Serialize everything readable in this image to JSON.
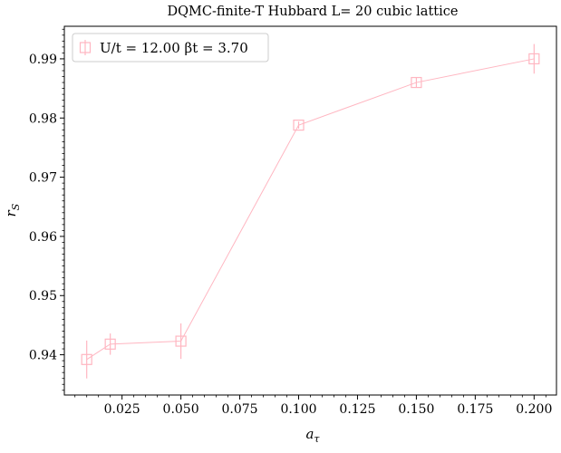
{
  "chart_data": {
    "type": "line",
    "title": "DQMC-finite-T Hubbard L= 20 cubic lattice",
    "xlabel": "a_τ",
    "xlabel_main": "a",
    "xlabel_sub": "τ",
    "ylabel": "r_S",
    "ylabel_main": "r",
    "ylabel_sub": "S",
    "xlim": [
      0.0005,
      0.2095
    ],
    "ylim": [
      0.9332,
      0.9955
    ],
    "x_ticks": [
      0.025,
      0.05,
      0.075,
      0.1,
      0.125,
      0.15,
      0.175,
      0.2
    ],
    "x_tick_labels": [
      "0.025",
      "0.050",
      "0.075",
      "0.100",
      "0.125",
      "0.150",
      "0.175",
      "0.200"
    ],
    "y_ticks": [
      0.94,
      0.95,
      0.96,
      0.97,
      0.98,
      0.99
    ],
    "y_tick_labels": [
      "0.94",
      "0.95",
      "0.96",
      "0.97",
      "0.98",
      "0.99"
    ],
    "grid": false,
    "legend_position": "top-left",
    "series": [
      {
        "name": "U/t = 12.00 βt = 3.70",
        "color": "#ffb6c1",
        "marker": "square",
        "x": [
          0.01,
          0.02,
          0.05,
          0.1,
          0.15,
          0.2
        ],
        "y": [
          0.9392,
          0.9418,
          0.9423,
          0.9788,
          0.986,
          0.99
        ],
        "yerr": [
          0.0032,
          0.0018,
          0.003,
          0.0006,
          0.0008,
          0.0025
        ]
      }
    ]
  }
}
